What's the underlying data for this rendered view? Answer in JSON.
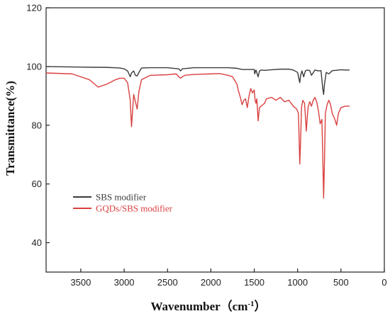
{
  "chart_data": {
    "type": "line",
    "xlabel": "Wavenumber（cm",
    "xlabel_sup": "-1",
    "xlabel_close": "）",
    "ylabel": "Transmittance(%)",
    "xlim": [
      3900,
      0
    ],
    "ylim": [
      30,
      120
    ],
    "x_inverted": true,
    "x_ticks": [
      3500,
      3000,
      2500,
      2000,
      1500,
      1000,
      500,
      0
    ],
    "y_ticks": [
      40,
      60,
      80,
      100,
      120
    ],
    "x_tick_labels": [
      "3500",
      "3000",
      "2500",
      "2000",
      "1500",
      "1000",
      "500",
      "0"
    ],
    "y_tick_labels": [
      "40",
      "60",
      "80",
      "100",
      "120"
    ],
    "legend_position": "lower-left",
    "grid": false,
    "series": [
      {
        "name": "SBS modifier",
        "color": "#3a3a3a",
        "x": [
          3900,
          3500,
          3200,
          3050,
          3000,
          2960,
          2930,
          2915,
          2890,
          2870,
          2850,
          2820,
          2800,
          2700,
          2500,
          2370,
          2350,
          2330,
          2200,
          2000,
          1800,
          1700,
          1640,
          1600,
          1550,
          1500,
          1495,
          1480,
          1455,
          1440,
          1420,
          1380,
          1300,
          1200,
          1100,
          1050,
          1000,
          975,
          965,
          950,
          930,
          910,
          890,
          860,
          840,
          800,
          760,
          730,
          710,
          700,
          690,
          670,
          640,
          600,
          560,
          500,
          450,
          400
        ],
        "y": [
          100.0,
          99.8,
          99.7,
          99.5,
          99.2,
          98.5,
          96.5,
          97.8,
          98.5,
          97.0,
          96.8,
          98.5,
          99.5,
          99.6,
          99.6,
          99.2,
          98.5,
          99.2,
          99.6,
          99.6,
          99.6,
          99.4,
          99.0,
          99.0,
          99.0,
          99.0,
          97.5,
          98.8,
          96.5,
          98.5,
          98.8,
          98.7,
          98.9,
          99.1,
          99.1,
          98.8,
          98.0,
          94.5,
          97.0,
          98.5,
          96.5,
          98.5,
          98.8,
          98.6,
          97.0,
          98.8,
          98.5,
          98.6,
          92.5,
          90.5,
          94.0,
          98.0,
          97.5,
          98.6,
          98.7,
          98.9,
          98.8,
          98.8
        ]
      },
      {
        "name": "GQDs/SBS modifier",
        "color": "#d94040",
        "x": [
          3900,
          3600,
          3400,
          3300,
          3200,
          3100,
          3050,
          3000,
          2960,
          2930,
          2915,
          2890,
          2870,
          2850,
          2830,
          2800,
          2700,
          2500,
          2400,
          2370,
          2350,
          2330,
          2300,
          2200,
          2000,
          1900,
          1800,
          1750,
          1700,
          1680,
          1660,
          1640,
          1620,
          1600,
          1580,
          1560,
          1540,
          1520,
          1500,
          1490,
          1480,
          1470,
          1455,
          1440,
          1420,
          1400,
          1380,
          1360,
          1300,
          1250,
          1200,
          1150,
          1100,
          1050,
          1010,
          990,
          975,
          965,
          955,
          940,
          920,
          910,
          900,
          880,
          860,
          840,
          820,
          800,
          780,
          760,
          740,
          720,
          710,
          700,
          690,
          680,
          660,
          640,
          620,
          600,
          570,
          550,
          530,
          500,
          450,
          400
        ],
        "y": [
          97.8,
          97.5,
          95.5,
          93.0,
          94.0,
          95.5,
          96.0,
          96.0,
          94.5,
          88.5,
          79.5,
          90.5,
          88.0,
          85.5,
          91.5,
          95.5,
          97.0,
          97.2,
          97.5,
          96.5,
          96.0,
          96.5,
          97.0,
          97.3,
          97.5,
          97.6,
          97.0,
          96.5,
          94.0,
          91.5,
          89.5,
          87.0,
          88.5,
          89.0,
          86.0,
          90.0,
          92.5,
          91.0,
          92.0,
          88.5,
          87.5,
          89.0,
          81.5,
          86.0,
          86.5,
          87.0,
          87.5,
          89.0,
          89.5,
          88.5,
          89.5,
          88.0,
          88.5,
          86.5,
          85.5,
          84.0,
          66.8,
          75.0,
          86.0,
          88.5,
          87.5,
          83.0,
          78.0,
          86.0,
          88.0,
          86.5,
          88.5,
          89.5,
          88.0,
          85.0,
          80.5,
          82.0,
          70.0,
          55.2,
          68.0,
          84.0,
          87.0,
          88.5,
          87.0,
          84.0,
          82.0,
          80.0,
          84.0,
          86.0,
          86.5,
          86.5
        ]
      }
    ]
  }
}
